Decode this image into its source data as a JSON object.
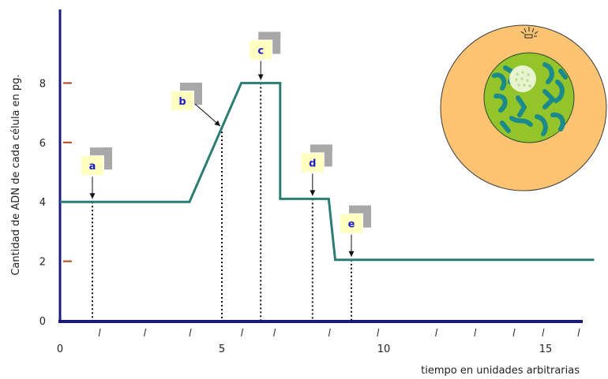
{
  "chart_data": {
    "type": "line",
    "title": "",
    "xlabel": "tiempo en unidades arbitrarias",
    "ylabel": "Cantidad de ADN de cada célula en pg.",
    "xlim": [
      0,
      16.2
    ],
    "ylim": [
      0,
      8.8
    ],
    "x_ticks": [
      0,
      5,
      10,
      15
    ],
    "y_ticks": [
      0,
      2,
      4,
      6,
      8
    ],
    "grid": false,
    "series": [
      {
        "x": [
          0,
          4,
          5.6,
          6.8,
          6.8,
          8.3,
          8.5,
          16.5
        ],
        "y": [
          4,
          4,
          8,
          8,
          4.1,
          4.1,
          2.05,
          2.05
        ],
        "color": "#2b7d74"
      }
    ],
    "markers": [
      {
        "label": "a",
        "x": 1.0,
        "y": 4
      },
      {
        "label": "b",
        "x": 5.0,
        "y": 6.5
      },
      {
        "label": "c",
        "x": 6.2,
        "y": 8
      },
      {
        "label": "d",
        "x": 7.8,
        "y": 4.1
      },
      {
        "label": "e",
        "x": 9.0,
        "y": 2.05
      }
    ],
    "colors": {
      "axis": "#1a1a80",
      "line": "#2b7d74",
      "tick_accent": "#b0421c",
      "label_box": "#ffffc0",
      "label_shadow": "#a8a8a8",
      "label_text": "#1c1ccc",
      "cell_cytoplasm": "#fcc472",
      "cell_nucleus": "#93c42a",
      "chromatin": "#1a8a8a",
      "nucleolus": "#e8f4d0"
    },
    "illustration": "cell-with-nucleus"
  }
}
